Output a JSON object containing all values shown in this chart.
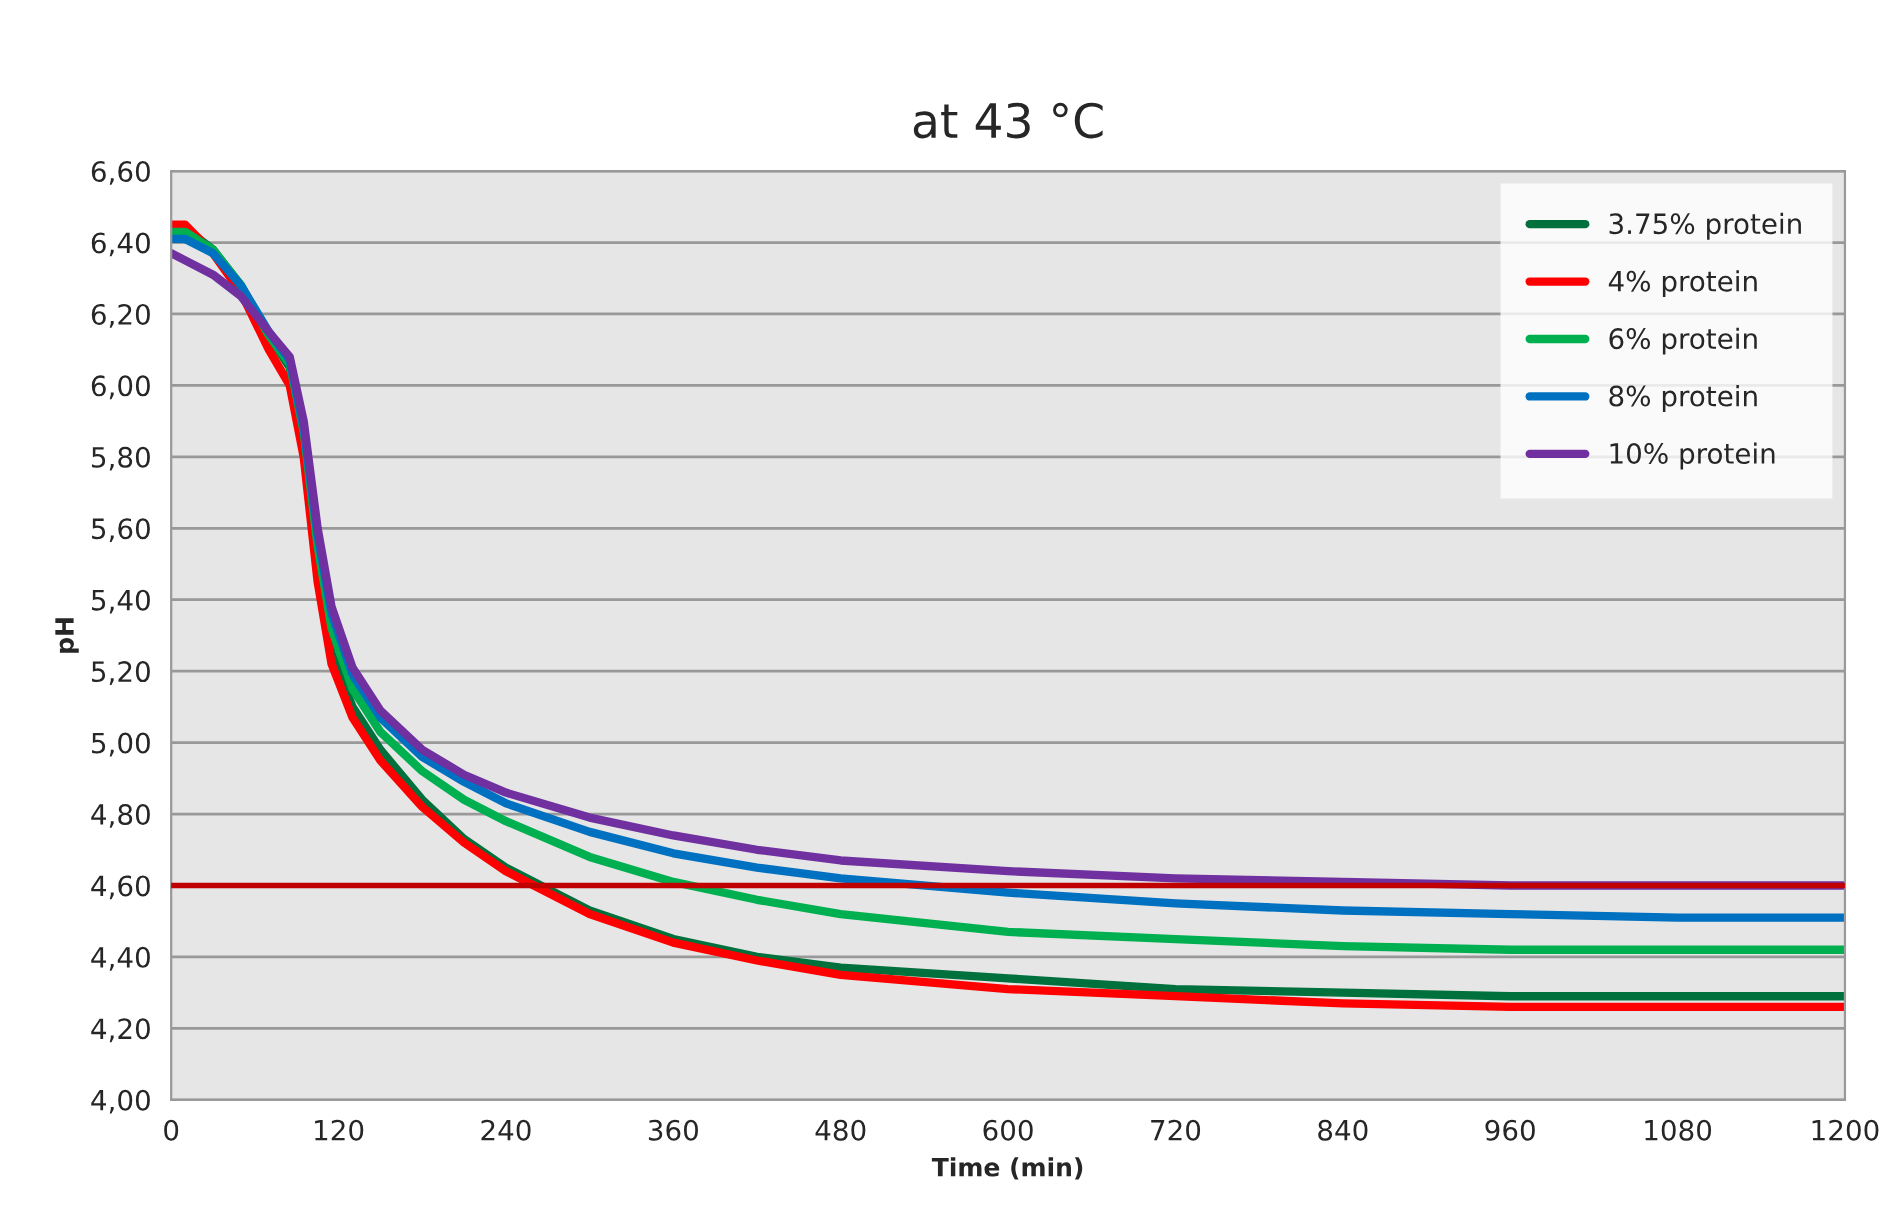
{
  "chart_data": {
    "type": "line",
    "title": "at 43 °C",
    "xlabel": "Time (min)",
    "ylabel": "pH",
    "x": [
      0,
      10,
      30,
      50,
      70,
      85,
      95,
      105,
      115,
      130,
      150,
      180,
      210,
      240,
      300,
      360,
      420,
      480,
      600,
      720,
      840,
      960,
      1080,
      1200
    ],
    "series": [
      {
        "name": "3.75% protein",
        "color": "#00703c",
        "values": [
          6.44,
          6.44,
          6.38,
          6.28,
          6.14,
          6.05,
          5.85,
          5.5,
          5.25,
          5.1,
          4.98,
          4.84,
          4.73,
          4.65,
          4.53,
          4.45,
          4.4,
          4.37,
          4.34,
          4.31,
          4.3,
          4.29,
          4.29,
          4.29
        ]
      },
      {
        "name": "4% protein",
        "color": "#ff0000",
        "values": [
          6.45,
          6.45,
          6.37,
          6.26,
          6.1,
          6.0,
          5.8,
          5.45,
          5.22,
          5.07,
          4.95,
          4.82,
          4.72,
          4.64,
          4.52,
          4.44,
          4.39,
          4.35,
          4.31,
          4.29,
          4.27,
          4.26,
          4.26,
          4.26
        ]
      },
      {
        "name": "6% protein",
        "color": "#00b050",
        "values": [
          6.43,
          6.43,
          6.38,
          6.28,
          6.14,
          6.06,
          5.87,
          5.55,
          5.32,
          5.15,
          5.03,
          4.92,
          4.84,
          4.78,
          4.68,
          4.61,
          4.56,
          4.52,
          4.47,
          4.45,
          4.43,
          4.42,
          4.42,
          4.42
        ]
      },
      {
        "name": "8% protein",
        "color": "#0070c0",
        "values": [
          6.41,
          6.41,
          6.37,
          6.28,
          6.15,
          6.07,
          5.88,
          5.58,
          5.36,
          5.19,
          5.07,
          4.96,
          4.89,
          4.83,
          4.75,
          4.69,
          4.65,
          4.62,
          4.58,
          4.55,
          4.53,
          4.52,
          4.51,
          4.51
        ]
      },
      {
        "name": "10% protein",
        "color": "#7030a0",
        "values": [
          6.37,
          6.35,
          6.31,
          6.25,
          6.15,
          6.08,
          5.9,
          5.6,
          5.38,
          5.21,
          5.09,
          4.98,
          4.91,
          4.86,
          4.79,
          4.74,
          4.7,
          4.67,
          4.64,
          4.62,
          4.61,
          4.6,
          4.6,
          4.6
        ]
      }
    ],
    "xlim": [
      0,
      1200
    ],
    "xticks": [
      0,
      120,
      240,
      360,
      480,
      600,
      720,
      840,
      960,
      1080,
      1200
    ],
    "ylim": [
      4.0,
      6.6
    ],
    "yticks": [
      {
        "value": 4.0,
        "label": "4,00"
      },
      {
        "value": 4.2,
        "label": "4,20"
      },
      {
        "value": 4.4,
        "label": "4,40"
      },
      {
        "value": 4.6,
        "label": "4,60"
      },
      {
        "value": 4.8,
        "label": "4,80"
      },
      {
        "value": 5.0,
        "label": "5,00"
      },
      {
        "value": 5.2,
        "label": "5,20"
      },
      {
        "value": 5.4,
        "label": "5,40"
      },
      {
        "value": 5.6,
        "label": "5,60"
      },
      {
        "value": 5.8,
        "label": "5,80"
      },
      {
        "value": 6.0,
        "label": "6,00"
      },
      {
        "value": 6.2,
        "label": "6,20"
      },
      {
        "value": 6.4,
        "label": "6,40"
      },
      {
        "value": 6.6,
        "label": "6,60"
      }
    ],
    "ref_lines": [
      {
        "axis": "y",
        "value": 4.6,
        "color": "#c00000"
      }
    ],
    "grid": "y",
    "legend": "top right",
    "marker": "none",
    "line_style": "solid"
  }
}
